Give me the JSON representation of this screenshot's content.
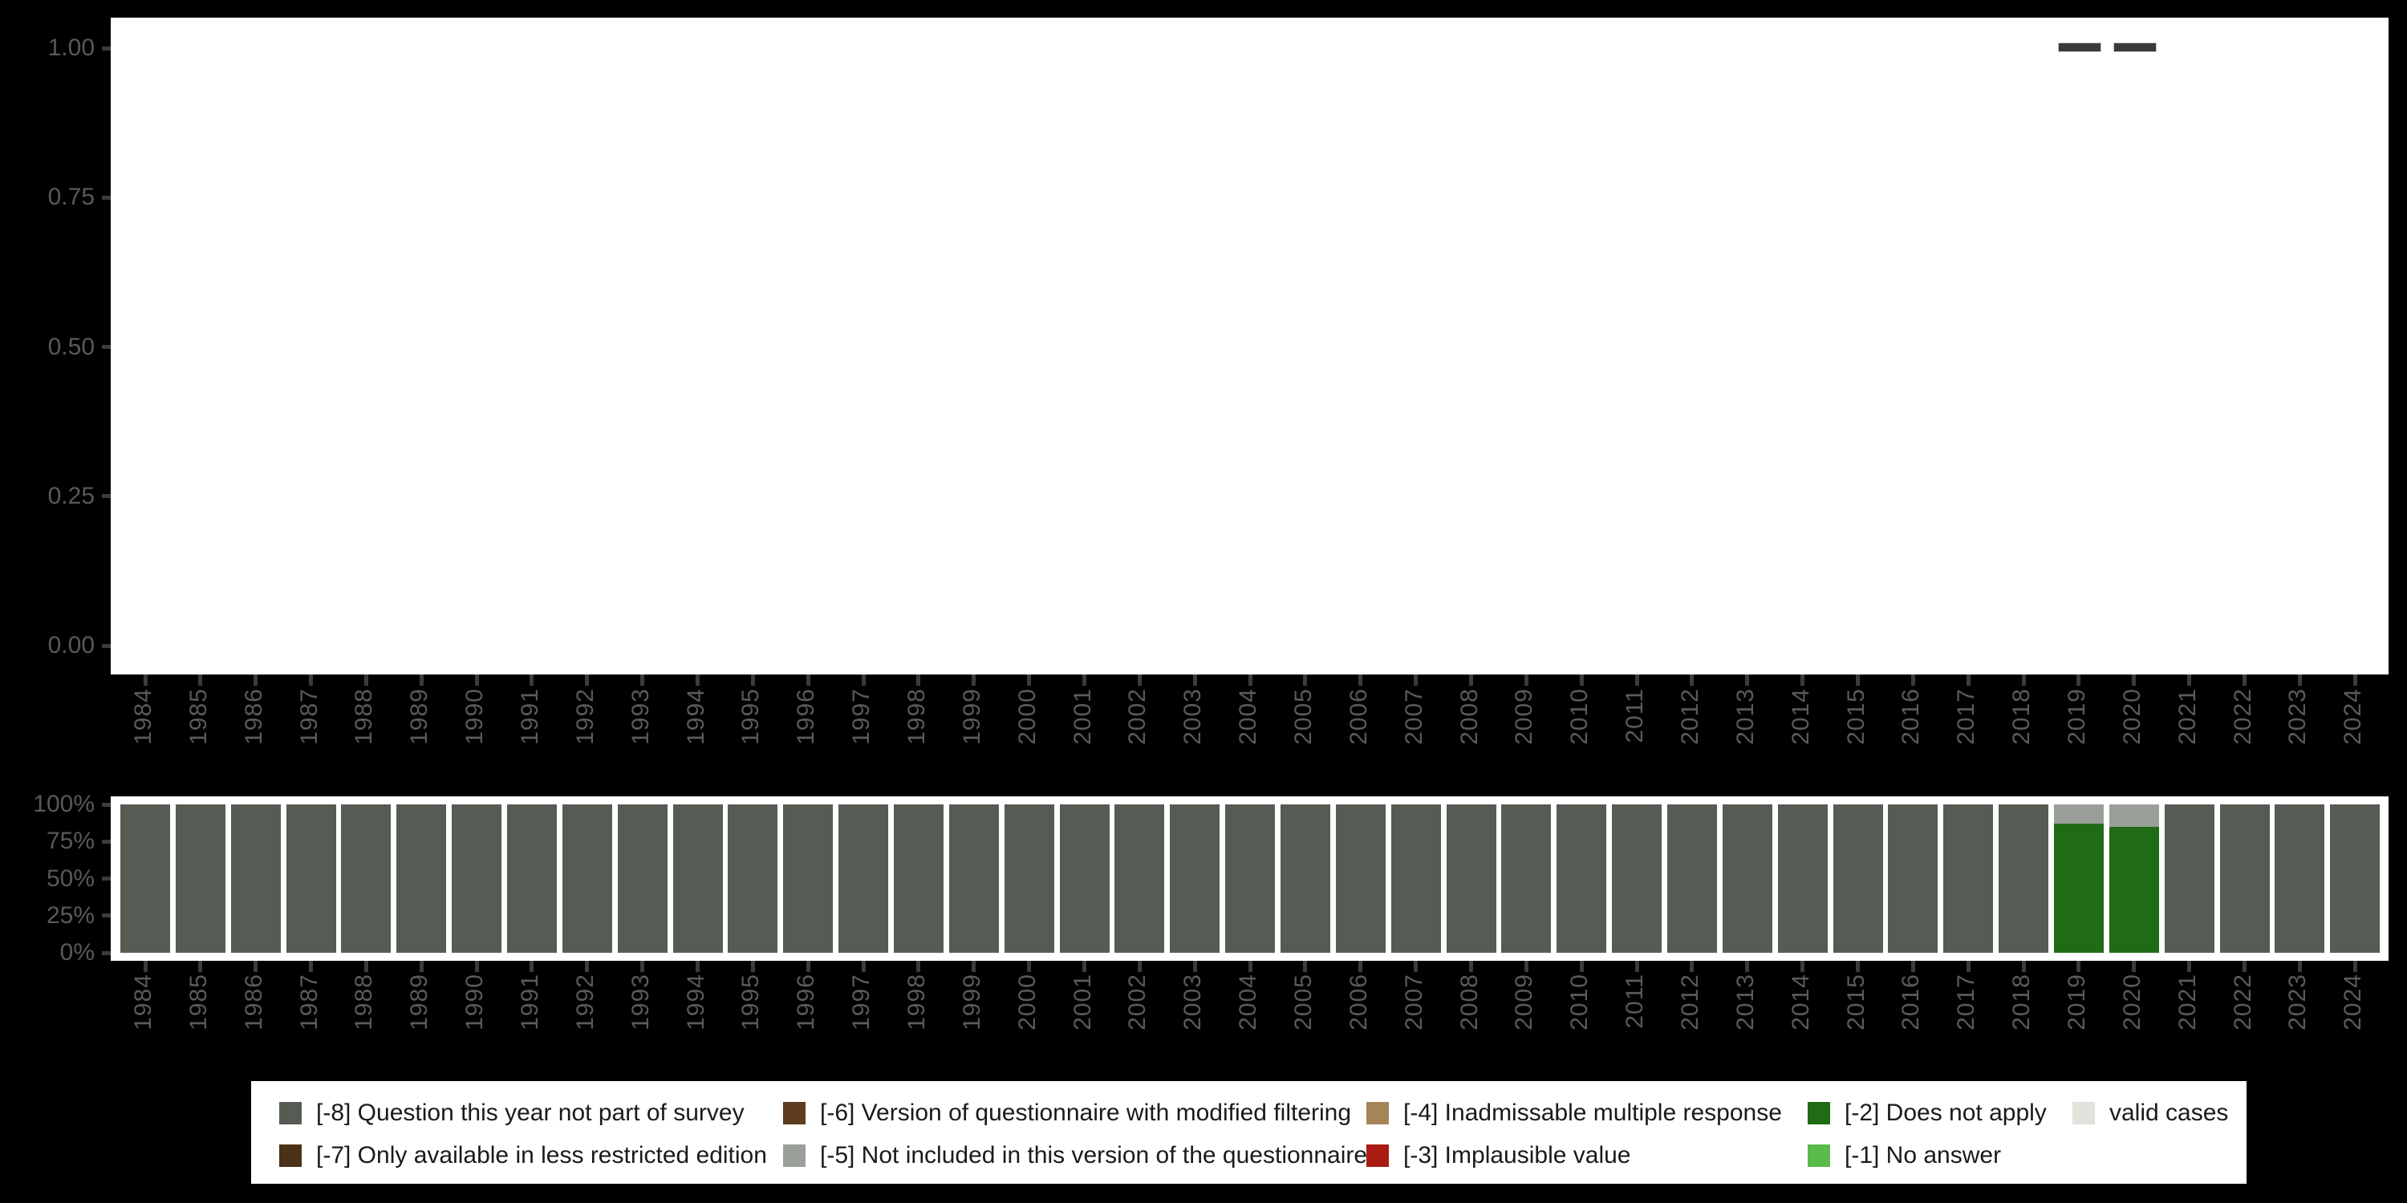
{
  "canvas": {
    "background": "#000000",
    "panel_background": "#ffffff",
    "axis_text_color": "#595959",
    "tick_color": "#3c3c3c",
    "legend_text_color": "#1a1a1a"
  },
  "years": [
    "1984",
    "1985",
    "1986",
    "1987",
    "1988",
    "1989",
    "1990",
    "1991",
    "1992",
    "1993",
    "1994",
    "1995",
    "1996",
    "1997",
    "1998",
    "1999",
    "2000",
    "2001",
    "2002",
    "2003",
    "2004",
    "2005",
    "2006",
    "2007",
    "2008",
    "2009",
    "2010",
    "2011",
    "2012",
    "2013",
    "2014",
    "2015",
    "2016",
    "2017",
    "2018",
    "2019",
    "2020",
    "2021",
    "2022",
    "2023",
    "2024"
  ],
  "top_axis": {
    "tick_labels": [
      "1.00",
      "0.75",
      "0.50",
      "0.25",
      "0.00"
    ],
    "tick_values": [
      1.0,
      0.75,
      0.5,
      0.25,
      0.0
    ]
  },
  "bottom_axis": {
    "tick_labels": [
      "100%",
      "75%",
      "50%",
      "25%",
      "0%"
    ],
    "tick_values": [
      1.0,
      0.75,
      0.5,
      0.25,
      0.0
    ]
  },
  "legend": {
    "entries": [
      {
        "label": "[-8] Question this year not part of survey",
        "color": "#565c54",
        "row": 0,
        "col": 0
      },
      {
        "label": "[-7] Only available in less restricted edition",
        "color": "#4a3118",
        "row": 1,
        "col": 0
      },
      {
        "label": "[-6] Version of questionnaire with modified filtering",
        "color": "#5d3b1e",
        "row": 0,
        "col": 1
      },
      {
        "label": "[-5] Not included in this version of the questionnaire",
        "color": "#9aa099",
        "row": 1,
        "col": 1
      },
      {
        "label": "[-4] Inadmissable multiple response",
        "color": "#a5845a",
        "row": 0,
        "col": 2
      },
      {
        "label": "[-3] Implausible value",
        "color": "#a91b12",
        "row": 1,
        "col": 2
      },
      {
        "label": "[-2] Does not apply",
        "color": "#206b15",
        "row": 0,
        "col": 3
      },
      {
        "label": "[-1] No answer",
        "color": "#5bbb4a",
        "row": 1,
        "col": 3
      },
      {
        "label": "valid cases",
        "color": "#dfe3dc",
        "row": 0,
        "col": 4
      }
    ]
  },
  "chart_data": [
    {
      "id": "top-chart",
      "type": "scatter",
      "marker": "dash",
      "marker_color": "#3a3a3a",
      "marker_border_color": "#c9c9c9",
      "x": [
        "2019",
        "2020"
      ],
      "y": [
        1.0,
        1.0
      ],
      "title": "",
      "xlabel": "",
      "ylabel": "",
      "ylim": [
        0,
        1
      ],
      "yticks": [
        "0.00",
        "0.25",
        "0.50",
        "0.75",
        "1.00"
      ],
      "grid": false,
      "legend_position": "none"
    },
    {
      "id": "bottom-chart",
      "type": "bar",
      "stacked": true,
      "percent": true,
      "categories": [
        "1984",
        "1985",
        "1986",
        "1987",
        "1988",
        "1989",
        "1990",
        "1991",
        "1992",
        "1993",
        "1994",
        "1995",
        "1996",
        "1997",
        "1998",
        "1999",
        "2000",
        "2001",
        "2002",
        "2003",
        "2004",
        "2005",
        "2006",
        "2007",
        "2008",
        "2009",
        "2010",
        "2011",
        "2012",
        "2013",
        "2014",
        "2015",
        "2016",
        "2017",
        "2018",
        "2019",
        "2020",
        "2021",
        "2022",
        "2023",
        "2024"
      ],
      "yticks": [
        "0%",
        "25%",
        "50%",
        "75%",
        "100%"
      ],
      "ylim": [
        0,
        1
      ],
      "grid": false,
      "legend_position": "bottom",
      "series": [
        {
          "name": "[-8] Question this year not part of survey",
          "color": "#565c54",
          "values": [
            1,
            1,
            1,
            1,
            1,
            1,
            1,
            1,
            1,
            1,
            1,
            1,
            1,
            1,
            1,
            1,
            1,
            1,
            1,
            1,
            1,
            1,
            1,
            1,
            1,
            1,
            1,
            1,
            1,
            1,
            1,
            1,
            1,
            1,
            1,
            0,
            0,
            1,
            1,
            1,
            1
          ]
        },
        {
          "name": "[-2] Does not apply",
          "color": "#206b15",
          "values": [
            0,
            0,
            0,
            0,
            0,
            0,
            0,
            0,
            0,
            0,
            0,
            0,
            0,
            0,
            0,
            0,
            0,
            0,
            0,
            0,
            0,
            0,
            0,
            0,
            0,
            0,
            0,
            0,
            0,
            0,
            0,
            0,
            0,
            0,
            0,
            0.87,
            0.85,
            0,
            0,
            0,
            0
          ]
        },
        {
          "name": "[-5] Not included in this version of the questionnaire",
          "color": "#9aa099",
          "values": [
            0,
            0,
            0,
            0,
            0,
            0,
            0,
            0,
            0,
            0,
            0,
            0,
            0,
            0,
            0,
            0,
            0,
            0,
            0,
            0,
            0,
            0,
            0,
            0,
            0,
            0,
            0,
            0,
            0,
            0,
            0,
            0,
            0,
            0,
            0,
            0.13,
            0.15,
            0,
            0,
            0,
            0
          ]
        }
      ]
    }
  ]
}
